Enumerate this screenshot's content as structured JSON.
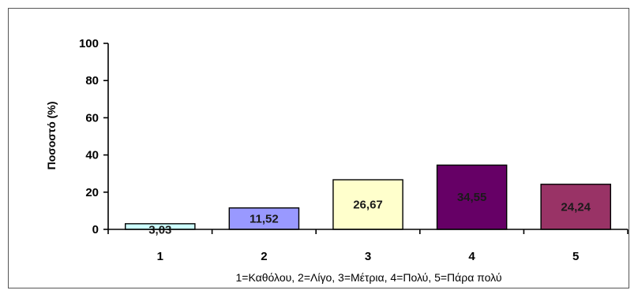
{
  "chart_data": {
    "type": "bar",
    "categories": [
      "1",
      "2",
      "3",
      "4",
      "5"
    ],
    "values": [
      3.03,
      11.52,
      26.67,
      34.55,
      24.24
    ],
    "data_labels": [
      "3,03",
      "11,52",
      "26,67",
      "34,55",
      "24,24"
    ],
    "colors": [
      "#ccffff",
      "#9999ff",
      "#ffffcc",
      "#660066",
      "#993366"
    ],
    "ylabel": "Ποσοστό (%)",
    "xlabel": "1=Καθόλου, 2=Λίγο, 3=Μέτρια, 4=Πολύ, 5=Πάρα πολύ",
    "ylim": [
      0,
      100
    ],
    "yticks": [
      0,
      20,
      40,
      60,
      80,
      100
    ],
    "grid": false,
    "legend": "none"
  }
}
